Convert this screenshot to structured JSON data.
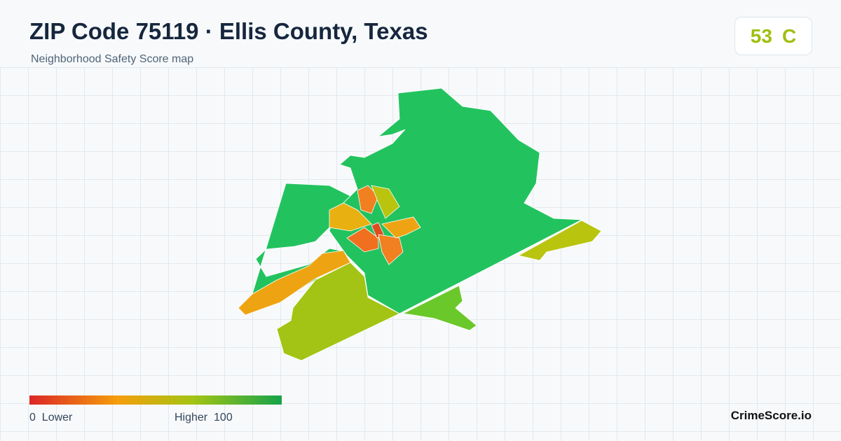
{
  "header": {
    "title": "ZIP Code 75119 · Ellis County, Texas",
    "subtitle": "Neighborhood Safety Score map"
  },
  "score": {
    "value": "53",
    "grade": "C"
  },
  "legend": {
    "min": "0",
    "min_label": "Lower",
    "max_label": "Higher",
    "max": "100"
  },
  "footer": {
    "brand": "CrimeScore.io"
  }
}
